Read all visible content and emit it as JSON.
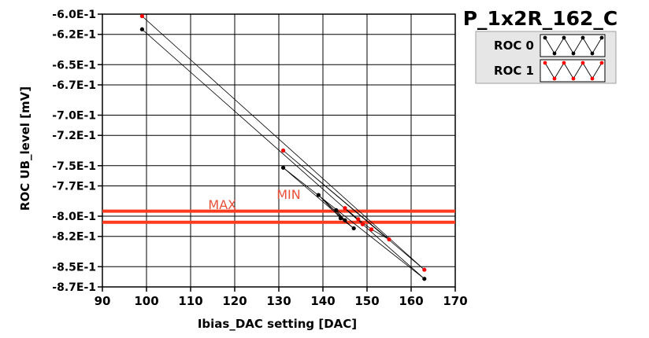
{
  "chart_data": {
    "type": "scatter",
    "title": "P_1x2R_162_C",
    "xlabel": "Ibias_DAC setting [DAC]",
    "ylabel": "ROC UB_level [mV]",
    "xlim": [
      90,
      170
    ],
    "ylim": [
      -0.87,
      -0.6
    ],
    "x_ticks": [
      90,
      100,
      110,
      120,
      130,
      140,
      150,
      160,
      170
    ],
    "x_tick_labels": [
      "90",
      "100",
      "110",
      "120",
      "130",
      "140",
      "150",
      "160",
      "170"
    ],
    "y_ticks": [
      -0.6,
      -0.62,
      -0.65,
      -0.67,
      -0.7,
      -0.72,
      -0.75,
      -0.77,
      -0.8,
      -0.82,
      -0.85,
      -0.87
    ],
    "y_tick_labels": [
      "-6.0E-1",
      "-6.2E-1",
      "-6.5E-1",
      "-6.7E-1",
      "-7.0E-1",
      "-7.2E-1",
      "-7.5E-1",
      "-7.7E-1",
      "-8.0E-1",
      "-8.2E-1",
      "-8.5E-1",
      "-8.7E-1"
    ],
    "grid": true,
    "legend_position": "top-right",
    "series": [
      {
        "name": "ROC 0",
        "color": "#000000",
        "marker": "circle",
        "points": [
          [
            99,
            -0.615
          ],
          [
            163,
            -0.862
          ],
          [
            131,
            -0.752
          ],
          [
            147,
            -0.812
          ],
          [
            144,
            -0.802
          ],
          [
            139,
            -0.779
          ],
          [
            145,
            -0.804
          ],
          [
            143,
            -0.794
          ]
        ]
      },
      {
        "name": "ROC 1",
        "color": "#ff0000",
        "marker": "circle",
        "points": [
          [
            99,
            -0.602
          ],
          [
            163,
            -0.853
          ],
          [
            131,
            -0.735
          ],
          [
            155,
            -0.823
          ],
          [
            151,
            -0.813
          ],
          [
            148,
            -0.803
          ],
          [
            145,
            -0.792
          ],
          [
            149,
            -0.808
          ]
        ]
      }
    ],
    "reference_lines": [
      {
        "label": "MAX",
        "y": -0.795,
        "color": "#ff3a1e",
        "label_x": 114,
        "label_y": -0.793
      },
      {
        "label": "MIN",
        "y": -0.806,
        "color": "#ff3a1e",
        "label_x": 129.5,
        "label_y": -0.783
      }
    ]
  },
  "legend": {
    "items": [
      {
        "label": "ROC 0",
        "color": "#000000"
      },
      {
        "label": "ROC 1",
        "color": "#ff0000"
      }
    ]
  }
}
